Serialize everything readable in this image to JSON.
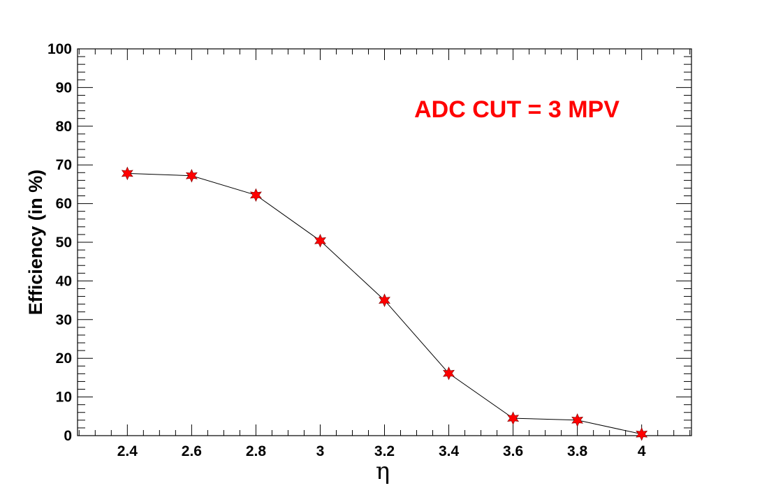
{
  "chart_data": {
    "type": "line",
    "title": "",
    "xlabel": "η",
    "ylabel": "Efficiency (in %)",
    "annotation": "ADC CUT = 3 MPV",
    "xlim": [
      2.245,
      4.155
    ],
    "ylim": [
      0,
      100
    ],
    "x_ticks": [
      2.4,
      2.6,
      2.8,
      3,
      3.2,
      3.4,
      3.6,
      3.8,
      4
    ],
    "x_tick_labels": [
      "2.4",
      "2.6",
      "2.8",
      "3",
      "3.2",
      "3.4",
      "3.6",
      "3.8",
      "4"
    ],
    "y_ticks": [
      0,
      10,
      20,
      30,
      40,
      50,
      60,
      70,
      80,
      90,
      100
    ],
    "y_tick_labels": [
      "0",
      "10",
      "20",
      "30",
      "40",
      "50",
      "60",
      "70",
      "80",
      "90",
      "100"
    ],
    "grid": false,
    "series": [
      {
        "x": [
          2.4,
          2.6,
          2.8,
          3.0,
          3.2,
          3.4,
          3.6,
          3.8,
          4.0
        ],
        "y": [
          67.8,
          67.2,
          62.2,
          50.4,
          35.0,
          16.1,
          4.5,
          4.0,
          0.4
        ],
        "line_color": "#000000",
        "marker": "star",
        "marker_color": "#ff0000"
      }
    ],
    "colors": {
      "annotation": "#ff0000",
      "axis": "#000000"
    }
  }
}
